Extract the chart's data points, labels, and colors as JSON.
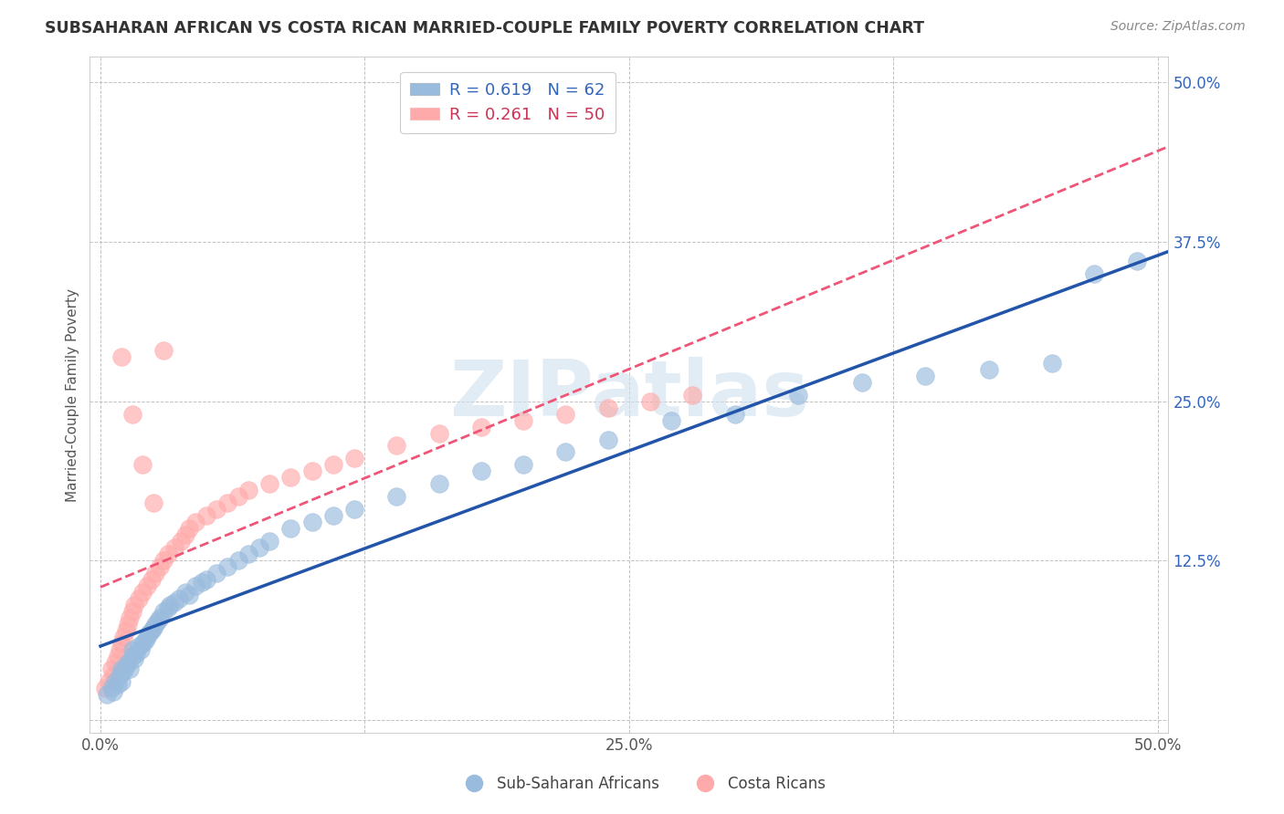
{
  "title": "SUBSAHARAN AFRICAN VS COSTA RICAN MARRIED-COUPLE FAMILY POVERTY CORRELATION CHART",
  "source": "Source: ZipAtlas.com",
  "xlabel": "",
  "ylabel": "Married-Couple Family Poverty",
  "xlim": [
    -0.005,
    0.505
  ],
  "ylim": [
    -0.01,
    0.52
  ],
  "xticks": [
    0.0,
    0.125,
    0.25,
    0.375,
    0.5
  ],
  "xtick_labels": [
    "0.0%",
    "",
    "25.0%",
    "",
    "50.0%"
  ],
  "yticks": [
    0.0,
    0.125,
    0.25,
    0.375,
    0.5
  ],
  "ytick_labels": [
    "",
    "12.5%",
    "25.0%",
    "37.5%",
    "50.0%"
  ],
  "blue_R": "0.619",
  "blue_N": "62",
  "pink_R": "0.261",
  "pink_N": "50",
  "blue_color": "#99BBDD",
  "pink_color": "#FFAAAA",
  "blue_line_color": "#2255AA",
  "pink_line_color": "#EE5577",
  "watermark_color": "#D0E0EE",
  "legend_label_blue": "Sub-Saharan Africans",
  "legend_label_pink": "Costa Ricans",
  "blue_scatter_x": [
    0.003,
    0.005,
    0.006,
    0.007,
    0.008,
    0.009,
    0.01,
    0.01,
    0.011,
    0.012,
    0.013,
    0.014,
    0.015,
    0.015,
    0.016,
    0.017,
    0.018,
    0.019,
    0.02,
    0.021,
    0.022,
    0.023,
    0.024,
    0.025,
    0.026,
    0.027,
    0.028,
    0.03,
    0.032,
    0.033,
    0.035,
    0.037,
    0.04,
    0.042,
    0.045,
    0.048,
    0.05,
    0.055,
    0.06,
    0.065,
    0.07,
    0.075,
    0.08,
    0.09,
    0.1,
    0.11,
    0.12,
    0.14,
    0.16,
    0.18,
    0.2,
    0.22,
    0.24,
    0.27,
    0.3,
    0.33,
    0.36,
    0.39,
    0.42,
    0.45,
    0.47,
    0.49
  ],
  "blue_scatter_y": [
    0.02,
    0.025,
    0.022,
    0.03,
    0.028,
    0.035,
    0.03,
    0.04,
    0.038,
    0.042,
    0.045,
    0.04,
    0.05,
    0.055,
    0.048,
    0.052,
    0.058,
    0.055,
    0.06,
    0.062,
    0.065,
    0.068,
    0.07,
    0.072,
    0.075,
    0.078,
    0.08,
    0.085,
    0.088,
    0.09,
    0.092,
    0.095,
    0.1,
    0.098,
    0.105,
    0.108,
    0.11,
    0.115,
    0.12,
    0.125,
    0.13,
    0.135,
    0.14,
    0.15,
    0.155,
    0.16,
    0.165,
    0.175,
    0.185,
    0.195,
    0.2,
    0.21,
    0.22,
    0.235,
    0.24,
    0.255,
    0.265,
    0.27,
    0.275,
    0.28,
    0.35,
    0.36
  ],
  "pink_scatter_x": [
    0.002,
    0.004,
    0.005,
    0.006,
    0.007,
    0.008,
    0.009,
    0.01,
    0.011,
    0.012,
    0.013,
    0.014,
    0.015,
    0.016,
    0.018,
    0.02,
    0.022,
    0.024,
    0.026,
    0.028,
    0.03,
    0.032,
    0.035,
    0.038,
    0.04,
    0.042,
    0.045,
    0.05,
    0.055,
    0.06,
    0.065,
    0.07,
    0.08,
    0.09,
    0.1,
    0.11,
    0.12,
    0.14,
    0.16,
    0.18,
    0.2,
    0.22,
    0.24,
    0.26,
    0.28,
    0.01,
    0.015,
    0.02,
    0.025,
    0.03
  ],
  "pink_scatter_y": [
    0.025,
    0.03,
    0.04,
    0.035,
    0.045,
    0.05,
    0.055,
    0.06,
    0.065,
    0.07,
    0.075,
    0.08,
    0.085,
    0.09,
    0.095,
    0.1,
    0.105,
    0.11,
    0.115,
    0.12,
    0.125,
    0.13,
    0.135,
    0.14,
    0.145,
    0.15,
    0.155,
    0.16,
    0.165,
    0.17,
    0.175,
    0.18,
    0.185,
    0.19,
    0.195,
    0.2,
    0.205,
    0.215,
    0.225,
    0.23,
    0.235,
    0.24,
    0.245,
    0.25,
    0.255,
    0.285,
    0.24,
    0.2,
    0.17,
    0.29
  ],
  "background_color": "#FFFFFF",
  "grid_color": "#CCCCCC"
}
